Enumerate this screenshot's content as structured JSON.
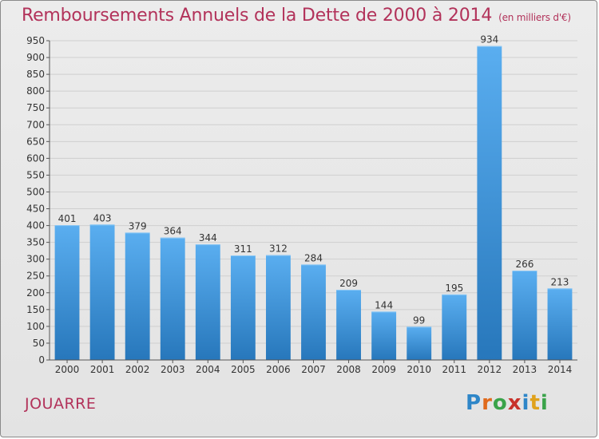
{
  "title": "Remboursements Annuels de la Dette de 2000 à 2014",
  "unit": "(en milliers d'€)",
  "commune": "JOUARRE",
  "logo": {
    "text": "Proxiti",
    "letters": [
      {
        "ch": "P",
        "color": "#2e86c8"
      },
      {
        "ch": "r",
        "color": "#e06a1c"
      },
      {
        "ch": "o",
        "color": "#3aa34a"
      },
      {
        "ch": "x",
        "color": "#c8312a"
      },
      {
        "ch": "i",
        "color": "#2e86c8"
      },
      {
        "ch": "t",
        "color": "#e0a21c"
      },
      {
        "ch": "i",
        "color": "#3aa34a"
      }
    ]
  },
  "colors": {
    "title": "#b2325a",
    "bar_light": "#5aaef0",
    "bar_dark": "#2777bb",
    "grid": "#cfcfcf",
    "axis": "#555555"
  },
  "chart_data": {
    "type": "bar",
    "categories": [
      "2000",
      "2001",
      "2002",
      "2003",
      "2004",
      "2005",
      "2006",
      "2007",
      "2008",
      "2009",
      "2010",
      "2011",
      "2012",
      "2013",
      "2014"
    ],
    "values": [
      401,
      403,
      379,
      364,
      344,
      311,
      312,
      284,
      209,
      144,
      99,
      195,
      934,
      266,
      213
    ],
    "ylim": [
      0,
      950
    ],
    "yticks": [
      0,
      50,
      100,
      150,
      200,
      250,
      300,
      350,
      400,
      450,
      500,
      550,
      600,
      650,
      700,
      750,
      800,
      850,
      900,
      950
    ],
    "grid": true,
    "data_labels": true
  }
}
